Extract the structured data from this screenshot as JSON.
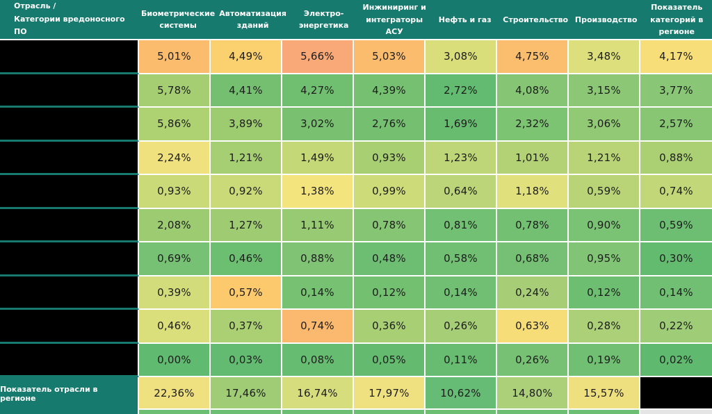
{
  "table": {
    "corner_header": "Отрасль /\nКатегории вредоносного ПО",
    "columns": [
      "Биометрические системы",
      "Автоматизация зданий",
      "Электро-энергетика",
      "Инжиниринг и интеграторы АСУ",
      "Нефть и газ",
      "Строительство",
      "Производство",
      "Показатель категорий в регионе"
    ],
    "row_labels_redacted": true,
    "rows": [
      {
        "cells": [
          {
            "v": "5,01%",
            "c": "#FBBC6D"
          },
          {
            "v": "4,49%",
            "c": "#FBD06E"
          },
          {
            "v": "5,66%",
            "c": "#F9A877"
          },
          {
            "v": "5,03%",
            "c": "#FBBC6D"
          },
          {
            "v": "3,08%",
            "c": "#D9DE7A"
          },
          {
            "v": "4,75%",
            "c": "#FBBE6E"
          },
          {
            "v": "3,48%",
            "c": "#DCDF7B"
          },
          {
            "v": "4,17%",
            "c": "#F7DE78"
          }
        ]
      },
      {
        "cells": [
          {
            "v": "5,78%",
            "c": "#A5CE72"
          },
          {
            "v": "4,41%",
            "c": "#74C070"
          },
          {
            "v": "4,27%",
            "c": "#70BF70"
          },
          {
            "v": "4,39%",
            "c": "#76C171"
          },
          {
            "v": "2,72%",
            "c": "#63BB71"
          },
          {
            "v": "4,08%",
            "c": "#85C574"
          },
          {
            "v": "3,15%",
            "c": "#8CC776"
          },
          {
            "v": "3,77%",
            "c": "#89C675"
          }
        ]
      },
      {
        "cells": [
          {
            "v": "5,86%",
            "c": "#AED171"
          },
          {
            "v": "3,89%",
            "c": "#9CCB70"
          },
          {
            "v": "3,02%",
            "c": "#79C171"
          },
          {
            "v": "2,76%",
            "c": "#74C070"
          },
          {
            "v": "1,69%",
            "c": "#68BC70"
          },
          {
            "v": "2,32%",
            "c": "#7CC372"
          },
          {
            "v": "3,06%",
            "c": "#92C975"
          },
          {
            "v": "2,57%",
            "c": "#89C674"
          }
        ]
      },
      {
        "cells": [
          {
            "v": "2,24%",
            "c": "#EFE17E"
          },
          {
            "v": "1,21%",
            "c": "#A6CE73"
          },
          {
            "v": "1,49%",
            "c": "#C5D877"
          },
          {
            "v": "0,93%",
            "c": "#A9CF73"
          },
          {
            "v": "1,23%",
            "c": "#BED678"
          },
          {
            "v": "1,01%",
            "c": "#B2D275"
          },
          {
            "v": "1,21%",
            "c": "#B8D476"
          },
          {
            "v": "0,88%",
            "c": "#ABD074"
          }
        ]
      },
      {
        "cells": [
          {
            "v": "0,93%",
            "c": "#CBDA79"
          },
          {
            "v": "0,92%",
            "c": "#CADA78"
          },
          {
            "v": "1,38%",
            "c": "#F4E47D"
          },
          {
            "v": "0,99%",
            "c": "#CEDB79"
          },
          {
            "v": "0,64%",
            "c": "#BCD578"
          },
          {
            "v": "1,18%",
            "c": "#E0E17D"
          },
          {
            "v": "0,59%",
            "c": "#B8D477"
          },
          {
            "v": "0,74%",
            "c": "#C2D778"
          }
        ]
      },
      {
        "cells": [
          {
            "v": "2,08%",
            "c": "#9CCB71"
          },
          {
            "v": "1,27%",
            "c": "#9FCC72"
          },
          {
            "v": "1,11%",
            "c": "#97CA72"
          },
          {
            "v": "0,78%",
            "c": "#86C573"
          },
          {
            "v": "0,81%",
            "c": "#72C073"
          },
          {
            "v": "0,78%",
            "c": "#74C073"
          },
          {
            "v": "0,90%",
            "c": "#7AC274"
          },
          {
            "v": "0,59%",
            "c": "#6DBE72"
          }
        ]
      },
      {
        "cells": [
          {
            "v": "0,69%",
            "c": "#76C173"
          },
          {
            "v": "0,46%",
            "c": "#6CBE71"
          },
          {
            "v": "0,88%",
            "c": "#80C375"
          },
          {
            "v": "0,48%",
            "c": "#6DBE72"
          },
          {
            "v": "0,58%",
            "c": "#71BF73"
          },
          {
            "v": "0,68%",
            "c": "#75C074"
          },
          {
            "v": "0,95%",
            "c": "#82C476"
          },
          {
            "v": "0,30%",
            "c": "#63BB70"
          }
        ]
      },
      {
        "cells": [
          {
            "v": "0,39%",
            "c": "#D2DC7A"
          },
          {
            "v": "0,57%",
            "c": "#FCC96D"
          },
          {
            "v": "0,14%",
            "c": "#77C172"
          },
          {
            "v": "0,12%",
            "c": "#74C071"
          },
          {
            "v": "0,14%",
            "c": "#71BF73"
          },
          {
            "v": "0,24%",
            "c": "#A7CE77"
          },
          {
            "v": "0,12%",
            "c": "#6EBE72"
          },
          {
            "v": "0,14%",
            "c": "#71BF73"
          }
        ]
      },
      {
        "cells": [
          {
            "v": "0,46%",
            "c": "#DADE7B"
          },
          {
            "v": "0,37%",
            "c": "#ABD073"
          },
          {
            "v": "0,74%",
            "c": "#FBB86F"
          },
          {
            "v": "0,36%",
            "c": "#A8CF74"
          },
          {
            "v": "0,26%",
            "c": "#A6CE77"
          },
          {
            "v": "0,63%",
            "c": "#F7DD78"
          },
          {
            "v": "0,28%",
            "c": "#ACD078"
          },
          {
            "v": "0,22%",
            "c": "#9FCC76"
          }
        ]
      },
      {
        "cells": [
          {
            "v": "0,00%",
            "c": "#60BA6F"
          },
          {
            "v": "0,03%",
            "c": "#62BB70"
          },
          {
            "v": "0,08%",
            "c": "#66BC70"
          },
          {
            "v": "0,05%",
            "c": "#64BB70"
          },
          {
            "v": "0,11%",
            "c": "#68BC71"
          },
          {
            "v": "0,26%",
            "c": "#77C174"
          },
          {
            "v": "0,19%",
            "c": "#70BF73"
          },
          {
            "v": "0,02%",
            "c": "#5FB96F"
          }
        ]
      }
    ],
    "footer": {
      "label": "Показатель отрасли в регионе",
      "cells": [
        {
          "v": "22,36%",
          "c": "#EFE080"
        },
        {
          "v": "17,46%",
          "c": "#9FCC75"
        },
        {
          "v": "16,74%",
          "c": "#D6DD7D"
        },
        {
          "v": "17,97%",
          "c": "#EFE080"
        },
        {
          "v": "10,62%",
          "c": "#66BC74"
        },
        {
          "v": "14,80%",
          "c": "#ACD07A"
        },
        {
          "v": "15,57%",
          "c": "#EEE07F"
        },
        {
          "v": "",
          "c": "#000000"
        }
      ]
    },
    "colors": {
      "header_teal": "#177A6E",
      "redacted_black": "#000000",
      "gridline_white": "#FFFFFF",
      "strip_green": "#6CBE72",
      "strip_gray": "#E5E5E5"
    }
  },
  "chart_data": {
    "type": "heatmap",
    "title": "Отрасль / Категории вредоносного ПО",
    "columns": [
      "Биометрические системы",
      "Автоматизация зданий",
      "Электро-энергетика",
      "Инжиниринг и интеграторы АСУ",
      "Нефть и газ",
      "Строительство",
      "Производство",
      "Показатель категорий в регионе"
    ],
    "row_labels": [
      "",
      "",
      "",
      "",
      "",
      "",
      "",
      "",
      "",
      ""
    ],
    "row_labels_redacted": true,
    "matrix_percent": [
      [
        5.01,
        4.49,
        5.66,
        5.03,
        3.08,
        4.75,
        3.48,
        4.17
      ],
      [
        5.78,
        4.41,
        4.27,
        4.39,
        2.72,
        4.08,
        3.15,
        3.77
      ],
      [
        5.86,
        3.89,
        3.02,
        2.76,
        1.69,
        2.32,
        3.06,
        2.57
      ],
      [
        2.24,
        1.21,
        1.49,
        0.93,
        1.23,
        1.01,
        1.21,
        0.88
      ],
      [
        0.93,
        0.92,
        1.38,
        0.99,
        0.64,
        1.18,
        0.59,
        0.74
      ],
      [
        2.08,
        1.27,
        1.11,
        0.78,
        0.81,
        0.78,
        0.9,
        0.59
      ],
      [
        0.69,
        0.46,
        0.88,
        0.48,
        0.58,
        0.68,
        0.95,
        0.3
      ],
      [
        0.39,
        0.57,
        0.14,
        0.12,
        0.14,
        0.24,
        0.12,
        0.14
      ],
      [
        0.46,
        0.37,
        0.74,
        0.36,
        0.26,
        0.63,
        0.28,
        0.22
      ],
      [
        0.0,
        0.03,
        0.08,
        0.05,
        0.11,
        0.26,
        0.19,
        0.02
      ]
    ],
    "footer_label": "Показатель отрасли в регионе",
    "footer_percent": [
      22.36,
      17.46,
      16.74,
      17.97,
      10.62,
      14.8,
      15.57,
      null
    ],
    "footer_last_cell_redacted": true,
    "legend_position": "none",
    "color_scale": "green-yellow-orange (low to high)"
  }
}
